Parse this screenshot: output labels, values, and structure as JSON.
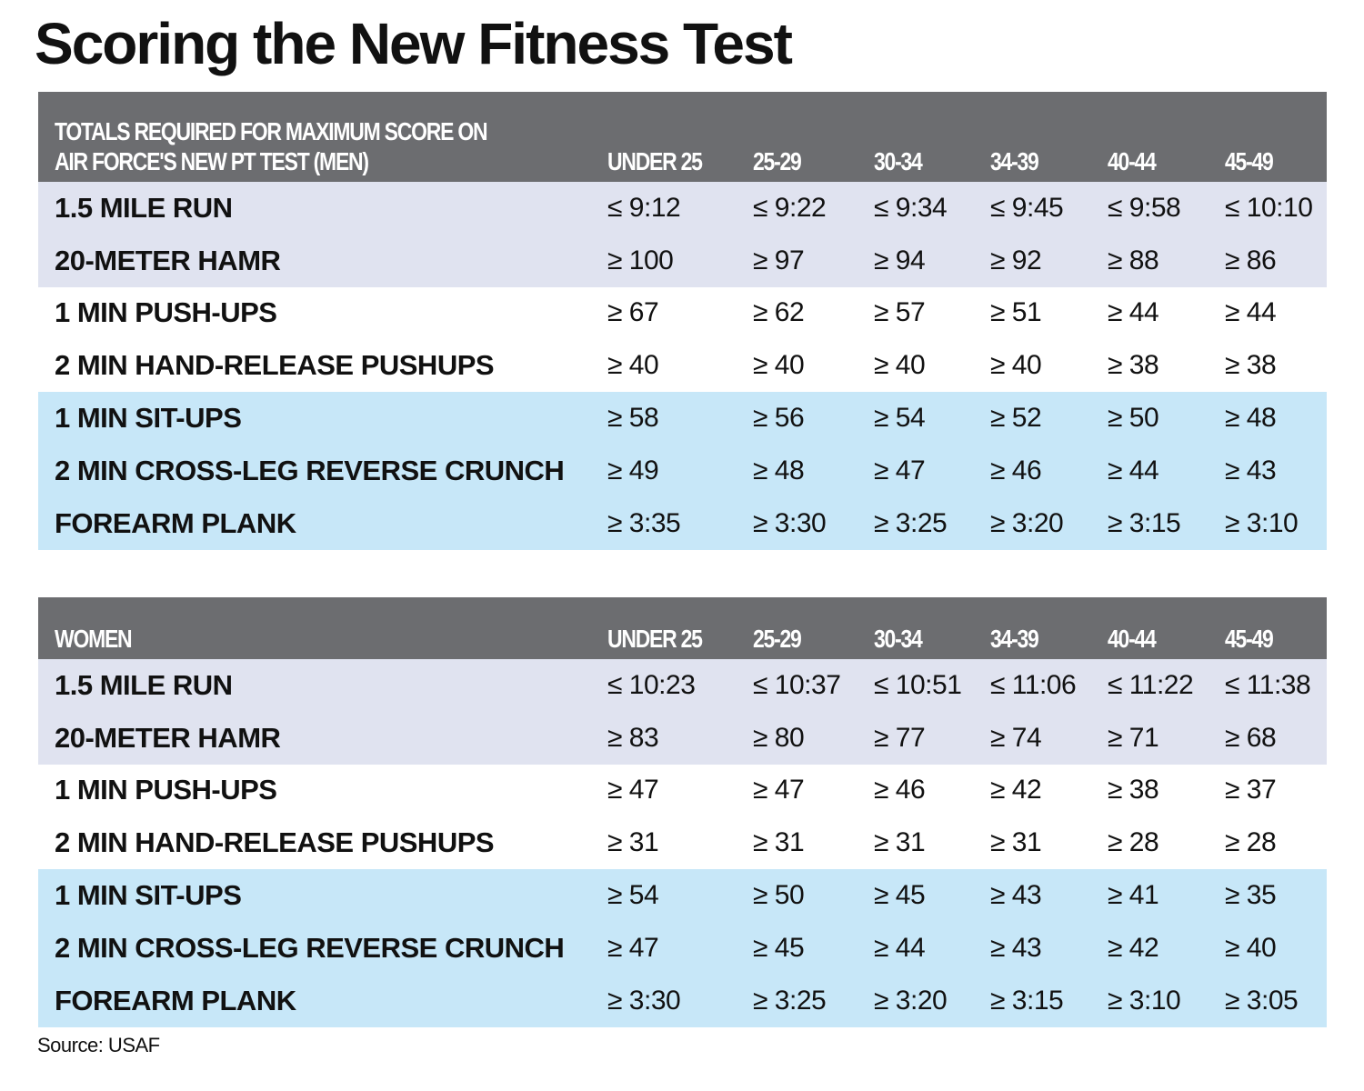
{
  "title": "Scoring the New Fitness Test",
  "source": "Source:  USAF",
  "age_groups": [
    "UNDER 25",
    "25-29",
    "30-34",
    "34-39",
    "40-44",
    "45-49"
  ],
  "group_colors": {
    "cardio": "#e0e3f0",
    "strength": "#ffffff",
    "core": "#c7e7f8",
    "header": "#6c6d70"
  },
  "chart_data": [
    {
      "type": "table",
      "title": "TOTALS REQUIRED FOR MAXIMUM SCORE ON AIR FORCE'S NEW PT TEST (MEN)",
      "header_lines": [
        "TOTALS REQUIRED FOR MAXIMUM SCORE ON",
        "AIR FORCE'S NEW PT TEST (MEN)"
      ],
      "columns": [
        "UNDER 25",
        "25-29",
        "30-34",
        "34-39",
        "40-44",
        "45-49"
      ],
      "rows": [
        {
          "group": "cardio",
          "label": "1.5 MILE RUN",
          "values": [
            "≤ 9:12",
            "≤ 9:22",
            "≤ 9:34",
            "≤ 9:45",
            "≤ 9:58",
            "≤ 10:10"
          ]
        },
        {
          "group": "cardio",
          "label": "20-METER HAMR",
          "values": [
            "≥ 100",
            "≥ 97",
            "≥ 94",
            "≥ 92",
            "≥ 88",
            "≥ 86"
          ]
        },
        {
          "group": "strength",
          "label": "1 MIN PUSH-UPS",
          "values": [
            "≥ 67",
            "≥ 62",
            "≥ 57",
            "≥ 51",
            "≥ 44",
            "≥ 44"
          ]
        },
        {
          "group": "strength",
          "label": "2 MIN HAND-RELEASE PUSHUPS",
          "values": [
            "≥ 40",
            "≥ 40",
            "≥ 40",
            "≥ 40",
            "≥ 38",
            "≥ 38"
          ]
        },
        {
          "group": "core",
          "label": "1 MIN SIT-UPS",
          "values": [
            "≥ 58",
            "≥ 56",
            "≥ 54",
            "≥ 52",
            "≥ 50",
            "≥ 48"
          ]
        },
        {
          "group": "core",
          "label": "2 MIN CROSS-LEG REVERSE CRUNCH",
          "values": [
            "≥ 49",
            "≥ 48",
            "≥ 47",
            "≥ 46",
            "≥ 44",
            "≥ 43"
          ]
        },
        {
          "group": "core",
          "label": "FOREARM PLANK",
          "values": [
            "≥ 3:35",
            "≥ 3:30",
            "≥ 3:25",
            "≥ 3:20",
            "≥ 3:15",
            "≥ 3:10"
          ]
        }
      ]
    },
    {
      "type": "table",
      "title": "WOMEN",
      "header_lines": [
        "WOMEN"
      ],
      "columns": [
        "UNDER 25",
        "25-29",
        "30-34",
        "34-39",
        "40-44",
        "45-49"
      ],
      "rows": [
        {
          "group": "cardio",
          "label": "1.5 MILE RUN",
          "values": [
            "≤ 10:23",
            "≤ 10:37",
            "≤ 10:51",
            "≤ 11:06",
            "≤ 11:22",
            "≤ 11:38"
          ]
        },
        {
          "group": "cardio",
          "label": "20-METER HAMR",
          "values": [
            "≥ 83",
            "≥ 80",
            "≥ 77",
            "≥ 74",
            "≥ 71",
            "≥ 68"
          ]
        },
        {
          "group": "strength",
          "label": "1 MIN PUSH-UPS",
          "values": [
            "≥ 47",
            "≥ 47",
            "≥ 46",
            "≥ 42",
            "≥ 38",
            "≥ 37"
          ]
        },
        {
          "group": "strength",
          "label": "2 MIN HAND-RELEASE PUSHUPS",
          "values": [
            "≥ 31",
            "≥ 31",
            "≥ 31",
            "≥ 31",
            "≥ 28",
            "≥ 28"
          ]
        },
        {
          "group": "core",
          "label": "1 MIN SIT-UPS",
          "values": [
            "≥ 54",
            "≥ 50",
            "≥ 45",
            "≥ 43",
            "≥ 41",
            "≥ 35"
          ]
        },
        {
          "group": "core",
          "label": "2 MIN CROSS-LEG REVERSE CRUNCH",
          "values": [
            "≥ 47",
            "≥ 45",
            "≥ 44",
            "≥ 43",
            "≥ 42",
            "≥ 40"
          ]
        },
        {
          "group": "core",
          "label": "FOREARM PLANK",
          "values": [
            "≥ 3:30",
            "≥ 3:25",
            "≥ 3:20",
            "≥ 3:15",
            "≥ 3:10",
            "≥ 3:05"
          ]
        }
      ]
    }
  ]
}
